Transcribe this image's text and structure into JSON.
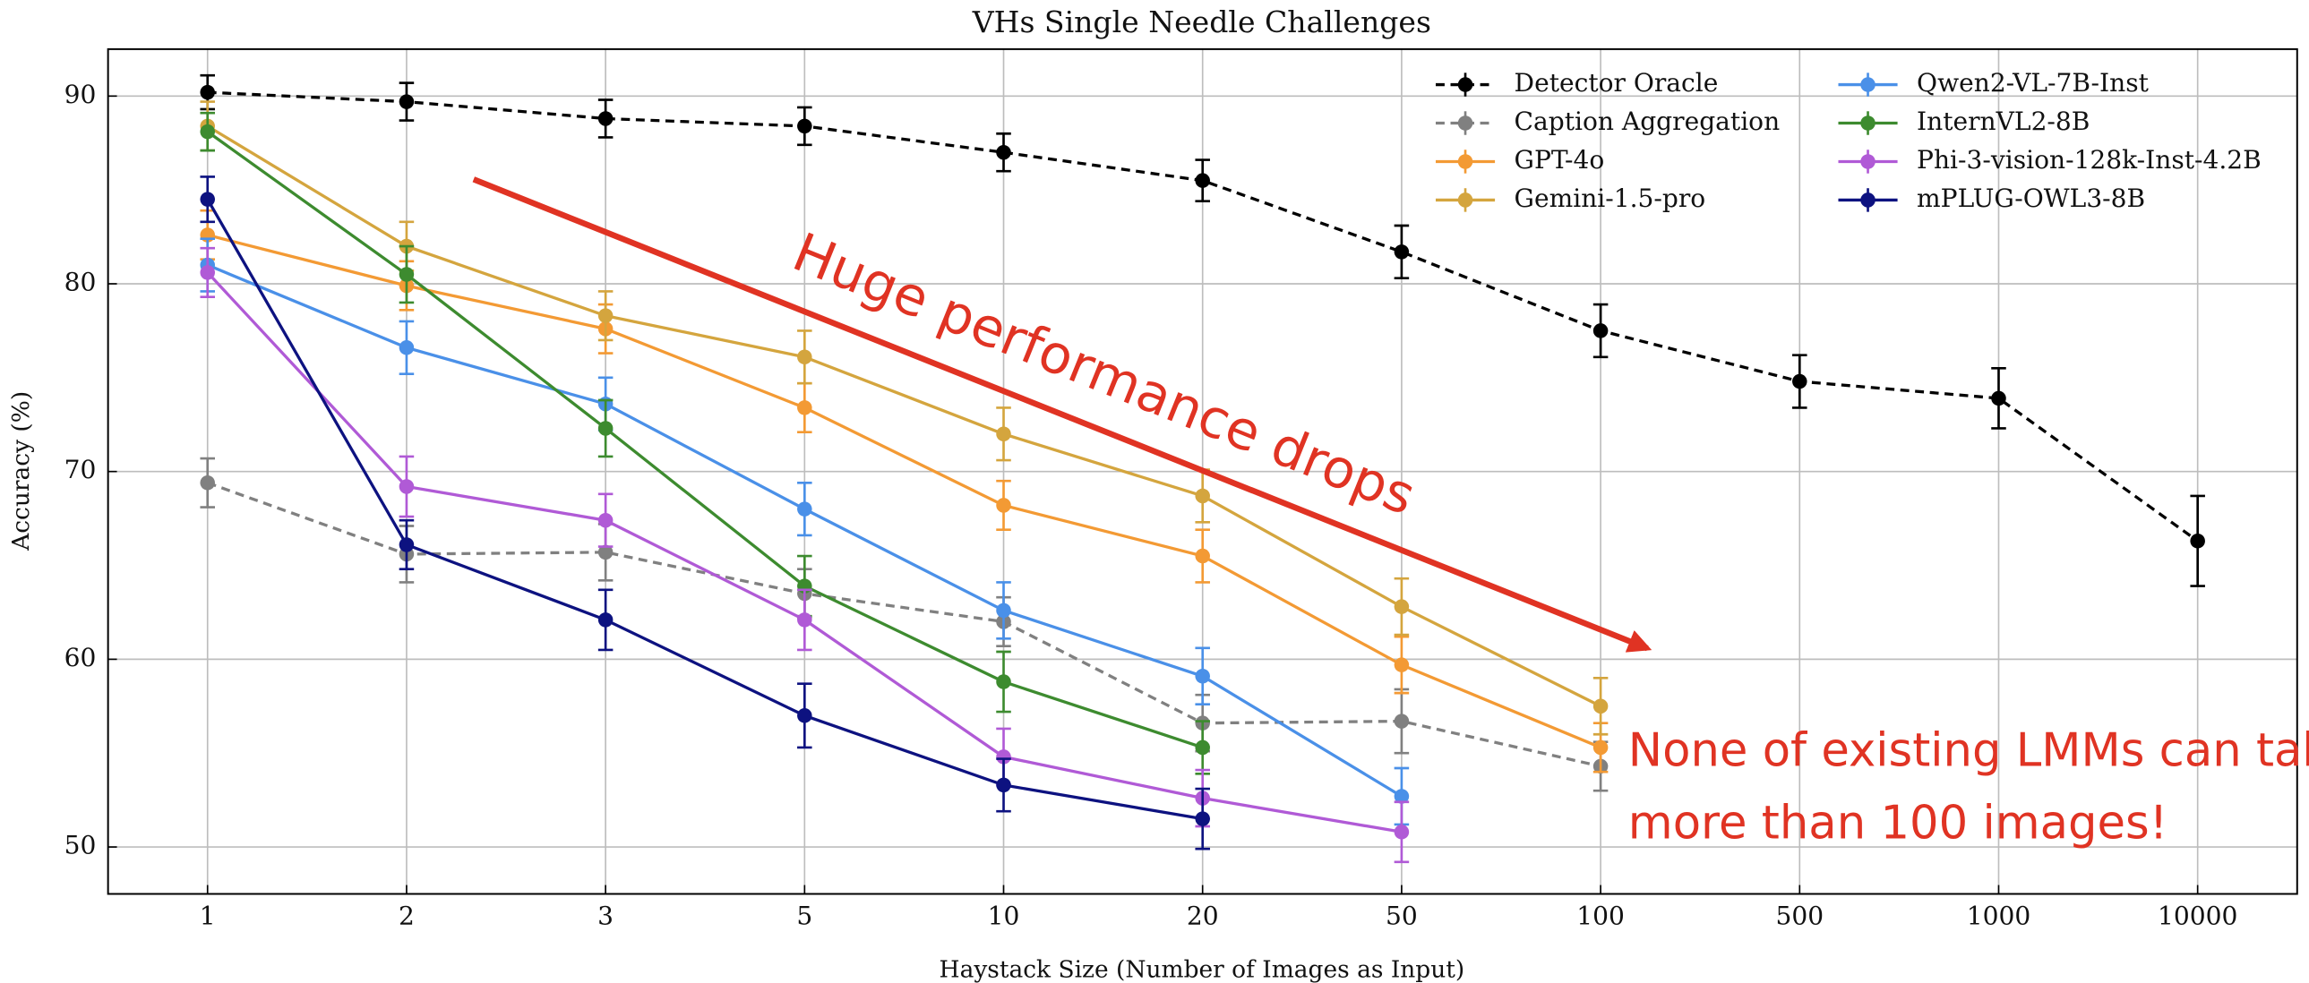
{
  "chart_data": {
    "type": "line",
    "title": "VHs Single Needle Challenges",
    "xlabel": "Haystack Size (Number of Images as Input)",
    "ylabel": "Accuracy (%)",
    "categories": [
      "1",
      "2",
      "3",
      "5",
      "10",
      "20",
      "50",
      "100",
      "500",
      "1000",
      "10000"
    ],
    "ylim": [
      47.5,
      92.5
    ],
    "yticks": [
      50,
      60,
      70,
      80,
      90
    ],
    "grid": true,
    "legend": "upper right",
    "series": [
      {
        "name": "Detector Oracle",
        "color": "#000000",
        "linestyle": "dashed",
        "values": [
          90.2,
          89.7,
          88.8,
          88.4,
          87.0,
          85.5,
          81.7,
          77.5,
          74.8,
          73.9,
          66.3
        ],
        "errors": [
          0.9,
          1.0,
          1.0,
          1.0,
          1.0,
          1.1,
          1.4,
          1.4,
          1.4,
          1.6,
          2.4
        ]
      },
      {
        "name": "Caption Aggregation",
        "color": "#808080",
        "linestyle": "dashed",
        "values": [
          69.4,
          65.6,
          65.7,
          63.5,
          62.0,
          56.6,
          56.7,
          54.3,
          null,
          null,
          null
        ],
        "errors": [
          1.3,
          1.5,
          1.5,
          1.3,
          1.3,
          1.5,
          1.7,
          1.3,
          null,
          null,
          null
        ]
      },
      {
        "name": "GPT-4o",
        "color": "#f39a34",
        "linestyle": "solid",
        "values": [
          82.6,
          79.9,
          77.6,
          73.4,
          68.2,
          65.5,
          59.7,
          55.3,
          null,
          null,
          null
        ],
        "errors": [
          1.3,
          1.3,
          1.3,
          1.3,
          1.3,
          1.4,
          1.5,
          1.3,
          null,
          null,
          null
        ]
      },
      {
        "name": "Gemini-1.5-pro",
        "color": "#d4a53e",
        "linestyle": "solid",
        "values": [
          88.4,
          82.0,
          78.3,
          76.1,
          72.0,
          68.7,
          62.8,
          57.5,
          null,
          null,
          null
        ],
        "errors": [
          1.3,
          1.3,
          1.3,
          1.4,
          1.4,
          1.4,
          1.5,
          1.5,
          null,
          null,
          null
        ]
      },
      {
        "name": "Qwen2-VL-7B-Inst",
        "color": "#4a90e8",
        "linestyle": "solid",
        "values": [
          81.0,
          76.6,
          73.6,
          68.0,
          62.6,
          59.1,
          52.7,
          null,
          null,
          null,
          null
        ],
        "errors": [
          1.4,
          1.4,
          1.4,
          1.4,
          1.5,
          1.5,
          1.5,
          null,
          null,
          null,
          null
        ]
      },
      {
        "name": "InternVL2-8B",
        "color": "#3d8b2f",
        "linestyle": "solid",
        "values": [
          88.1,
          80.5,
          72.3,
          63.9,
          58.8,
          55.3,
          null,
          null,
          null,
          null,
          null
        ],
        "errors": [
          1.0,
          1.5,
          1.5,
          1.6,
          1.6,
          1.4,
          null,
          null,
          null,
          null,
          null
        ]
      },
      {
        "name": "Phi-3-vision-128k-Inst-4.2B",
        "color": "#b05ad6",
        "linestyle": "solid",
        "values": [
          80.6,
          69.2,
          67.4,
          62.1,
          54.8,
          52.6,
          50.8,
          null,
          null,
          null,
          null
        ],
        "errors": [
          1.3,
          1.6,
          1.4,
          1.6,
          1.5,
          1.5,
          1.6,
          null,
          null,
          null,
          null
        ]
      },
      {
        "name": "mPLUG-OWL3-8B",
        "color": "#0d1280",
        "linestyle": "solid",
        "values": [
          84.5,
          66.1,
          62.1,
          57.0,
          53.3,
          51.5,
          null,
          null,
          null,
          null,
          null
        ],
        "errors": [
          1.2,
          1.3,
          1.6,
          1.7,
          1.4,
          1.6,
          null,
          null,
          null,
          null,
          null
        ]
      }
    ],
    "annotations": [
      {
        "text": "Huge performance drops"
      },
      {
        "lines": [
          "None of existing LMMs can take",
          "more than 100 images!"
        ]
      }
    ]
  }
}
